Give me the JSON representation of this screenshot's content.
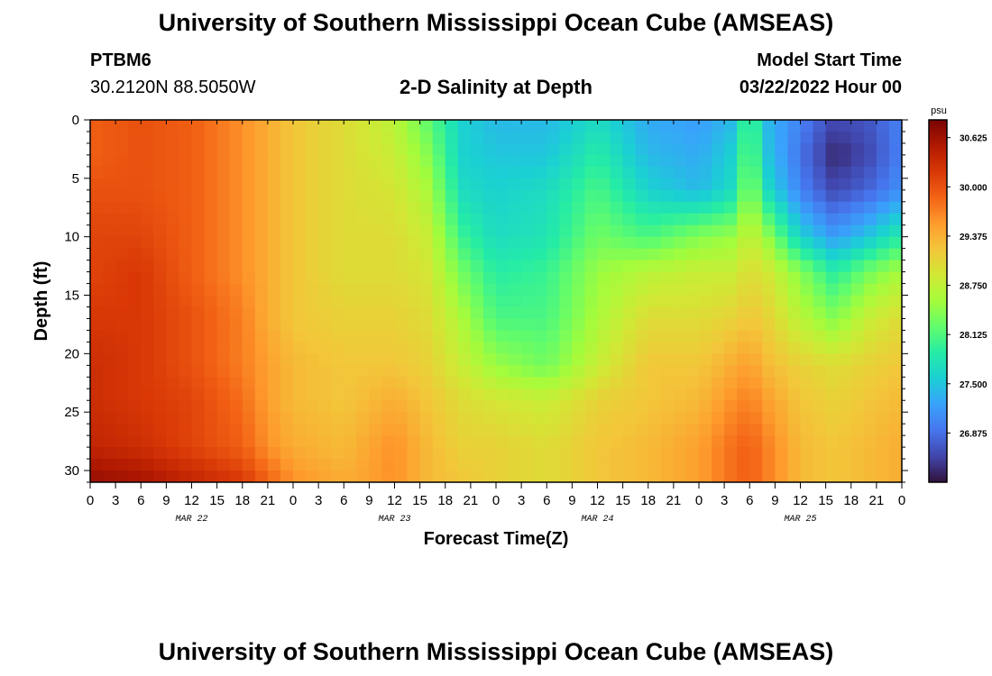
{
  "header": {
    "title": "University of Southern Mississippi Ocean Cube (AMSEAS)",
    "station": "PTBM6",
    "coordinates": "30.2120N  88.5050W",
    "subtitle": "2-D Salinity at Depth",
    "start_label": "Model Start Time",
    "start_value": "03/22/2022 Hour 00"
  },
  "footer": {
    "title": "University of Southern Mississippi Ocean Cube (AMSEAS)"
  },
  "chart_data": {
    "type": "heatmap",
    "xlabel": "Forecast Time(Z)",
    "ylabel": "Depth (ft)",
    "x_hours": [
      0,
      96
    ],
    "y_depth_ft": [
      0,
      31
    ],
    "xticks": [
      "0",
      "3",
      "6",
      "9",
      "12",
      "15",
      "18",
      "21",
      "0",
      "3",
      "6",
      "9",
      "12",
      "15",
      "18",
      "21",
      "0",
      "3",
      "6",
      "9",
      "12",
      "15",
      "18",
      "21",
      "0",
      "3",
      "6",
      "9",
      "12",
      "15",
      "18",
      "21",
      "0"
    ],
    "yticks": [
      "0",
      "5",
      "10",
      "15",
      "20",
      "25",
      "30"
    ],
    "day_labels": [
      {
        "label": "MAR 22",
        "hour": 12
      },
      {
        "label": "MAR 23",
        "hour": 36
      },
      {
        "label": "MAR 24",
        "hour": 60
      },
      {
        "label": "MAR 25",
        "hour": 84
      }
    ],
    "colorbar": {
      "unit": "psu",
      "ticks": [
        "30.625",
        "30.000",
        "29.375",
        "28.750",
        "28.125",
        "27.500",
        "26.875"
      ],
      "min": 26.25,
      "max": 30.85,
      "colors": [
        "#30123b",
        "#4145ab",
        "#4675ed",
        "#39a2fc",
        "#1bcfd4",
        "#24eca6",
        "#61fc6c",
        "#a4fc3b",
        "#d1e834",
        "#f3c63a",
        "#fe9b2d",
        "#f36315",
        "#d93806",
        "#b11901",
        "#7a0403"
      ]
    },
    "time_hours": [
      0,
      6,
      12,
      18,
      21,
      24,
      30,
      36,
      40,
      44,
      48,
      54,
      60,
      66,
      72,
      76,
      78,
      80,
      84,
      88,
      92,
      96
    ],
    "depth_ft": [
      0,
      3,
      6,
      10,
      13,
      17,
      21,
      24,
      28,
      31
    ],
    "salinity_psu": [
      [
        29.9,
        30.0,
        29.9,
        29.6,
        29.4,
        29.2,
        29.0,
        28.7,
        28.2,
        27.6,
        27.4,
        27.4,
        27.7,
        27.3,
        27.2,
        27.4,
        28.2,
        27.4,
        27.0,
        26.6,
        26.7,
        27.0
      ],
      [
        29.9,
        30.0,
        29.9,
        29.6,
        29.4,
        29.2,
        29.0,
        28.8,
        28.4,
        27.6,
        27.5,
        27.5,
        27.9,
        27.4,
        27.3,
        27.6,
        28.3,
        27.5,
        26.9,
        26.4,
        26.6,
        27.0
      ],
      [
        30.0,
        30.0,
        29.9,
        29.6,
        29.4,
        29.2,
        29.0,
        28.9,
        28.6,
        27.7,
        27.6,
        27.7,
        28.1,
        27.6,
        27.4,
        27.7,
        28.5,
        27.7,
        27.0,
        26.6,
        26.8,
        27.1
      ],
      [
        30.1,
        30.1,
        29.9,
        29.6,
        29.4,
        29.2,
        29.0,
        29.0,
        28.8,
        28.0,
        27.7,
        27.8,
        28.3,
        28.1,
        28.4,
        28.5,
        28.8,
        28.5,
        27.6,
        27.2,
        27.5,
        27.9
      ],
      [
        30.1,
        30.2,
        29.9,
        29.6,
        29.4,
        29.2,
        29.0,
        29.0,
        28.9,
        28.3,
        27.9,
        28.0,
        28.5,
        28.7,
        28.8,
        28.8,
        29.0,
        28.9,
        28.4,
        27.9,
        28.3,
        28.6
      ],
      [
        30.2,
        30.2,
        30.0,
        29.7,
        29.4,
        29.2,
        29.1,
        29.1,
        29.0,
        28.6,
        28.1,
        28.1,
        28.6,
        29.0,
        29.0,
        29.1,
        29.2,
        29.1,
        28.7,
        28.4,
        28.8,
        29.0
      ],
      [
        30.3,
        30.2,
        30.0,
        29.7,
        29.5,
        29.3,
        29.2,
        29.2,
        29.1,
        28.8,
        28.5,
        28.3,
        28.8,
        29.2,
        29.2,
        29.4,
        29.5,
        29.3,
        29.1,
        29.0,
        29.1,
        29.2
      ],
      [
        30.3,
        30.2,
        30.1,
        29.8,
        29.5,
        29.3,
        29.2,
        29.4,
        29.2,
        29.0,
        28.9,
        28.8,
        29.1,
        29.2,
        29.3,
        29.6,
        29.7,
        29.5,
        29.2,
        29.1,
        29.2,
        29.3
      ],
      [
        30.4,
        30.3,
        30.1,
        29.9,
        29.6,
        29.4,
        29.3,
        29.6,
        29.3,
        29.1,
        29.1,
        29.0,
        29.2,
        29.3,
        29.5,
        29.8,
        29.9,
        29.7,
        29.3,
        29.2,
        29.3,
        29.4
      ],
      [
        30.7,
        30.6,
        30.4,
        30.2,
        29.9,
        29.6,
        29.4,
        29.6,
        29.3,
        29.2,
        29.1,
        29.0,
        29.2,
        29.3,
        29.5,
        29.8,
        29.9,
        29.7,
        29.3,
        29.2,
        29.3,
        29.4
      ]
    ]
  }
}
